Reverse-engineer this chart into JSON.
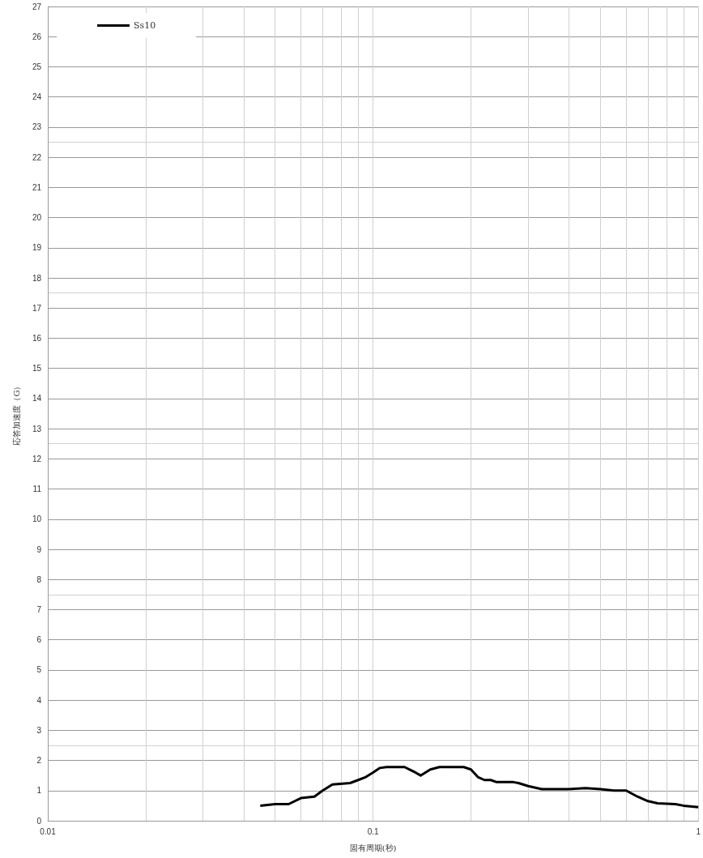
{
  "chart_data": {
    "type": "line",
    "xlabel": "固有周期(秒)",
    "ylabel": "応答加速度（G）",
    "log": "x",
    "xlim": [
      0.01,
      1
    ],
    "xticks": [
      0.01,
      0.1,
      1
    ],
    "ylim": [
      0,
      27
    ],
    "yticks": [
      0,
      1,
      2,
      3,
      4,
      5,
      6,
      7,
      8,
      9,
      10,
      11,
      12,
      13,
      14,
      15,
      16,
      17,
      18,
      19,
      20,
      21,
      22,
      23,
      24,
      25,
      26,
      27
    ],
    "grid": true,
    "legend": "top left",
    "marker": "none",
    "line_style": "solid",
    "series": [
      {
        "name": "Ss10",
        "color": "#000000",
        "x": [
          0.045,
          0.05,
          0.055,
          0.06,
          0.066,
          0.07,
          0.075,
          0.085,
          0.09,
          0.095,
          0.1,
          0.105,
          0.11,
          0.125,
          0.135,
          0.14,
          0.15,
          0.16,
          0.19,
          0.2,
          0.21,
          0.22,
          0.23,
          0.24,
          0.27,
          0.28,
          0.3,
          0.33,
          0.4,
          0.45,
          0.5,
          0.55,
          0.6,
          0.65,
          0.7,
          0.75,
          0.85,
          0.9,
          1
        ],
        "values": [
          0.5,
          0.55,
          0.55,
          0.75,
          0.8,
          1.0,
          1.2,
          1.25,
          1.35,
          1.45,
          1.6,
          1.75,
          1.78,
          1.78,
          1.6,
          1.5,
          1.7,
          1.78,
          1.78,
          1.7,
          1.45,
          1.35,
          1.35,
          1.28,
          1.28,
          1.25,
          1.15,
          1.05,
          1.05,
          1.08,
          1.05,
          1.0,
          1.0,
          0.8,
          0.65,
          0.58,
          0.55,
          0.5,
          0.45
        ]
      }
    ]
  }
}
